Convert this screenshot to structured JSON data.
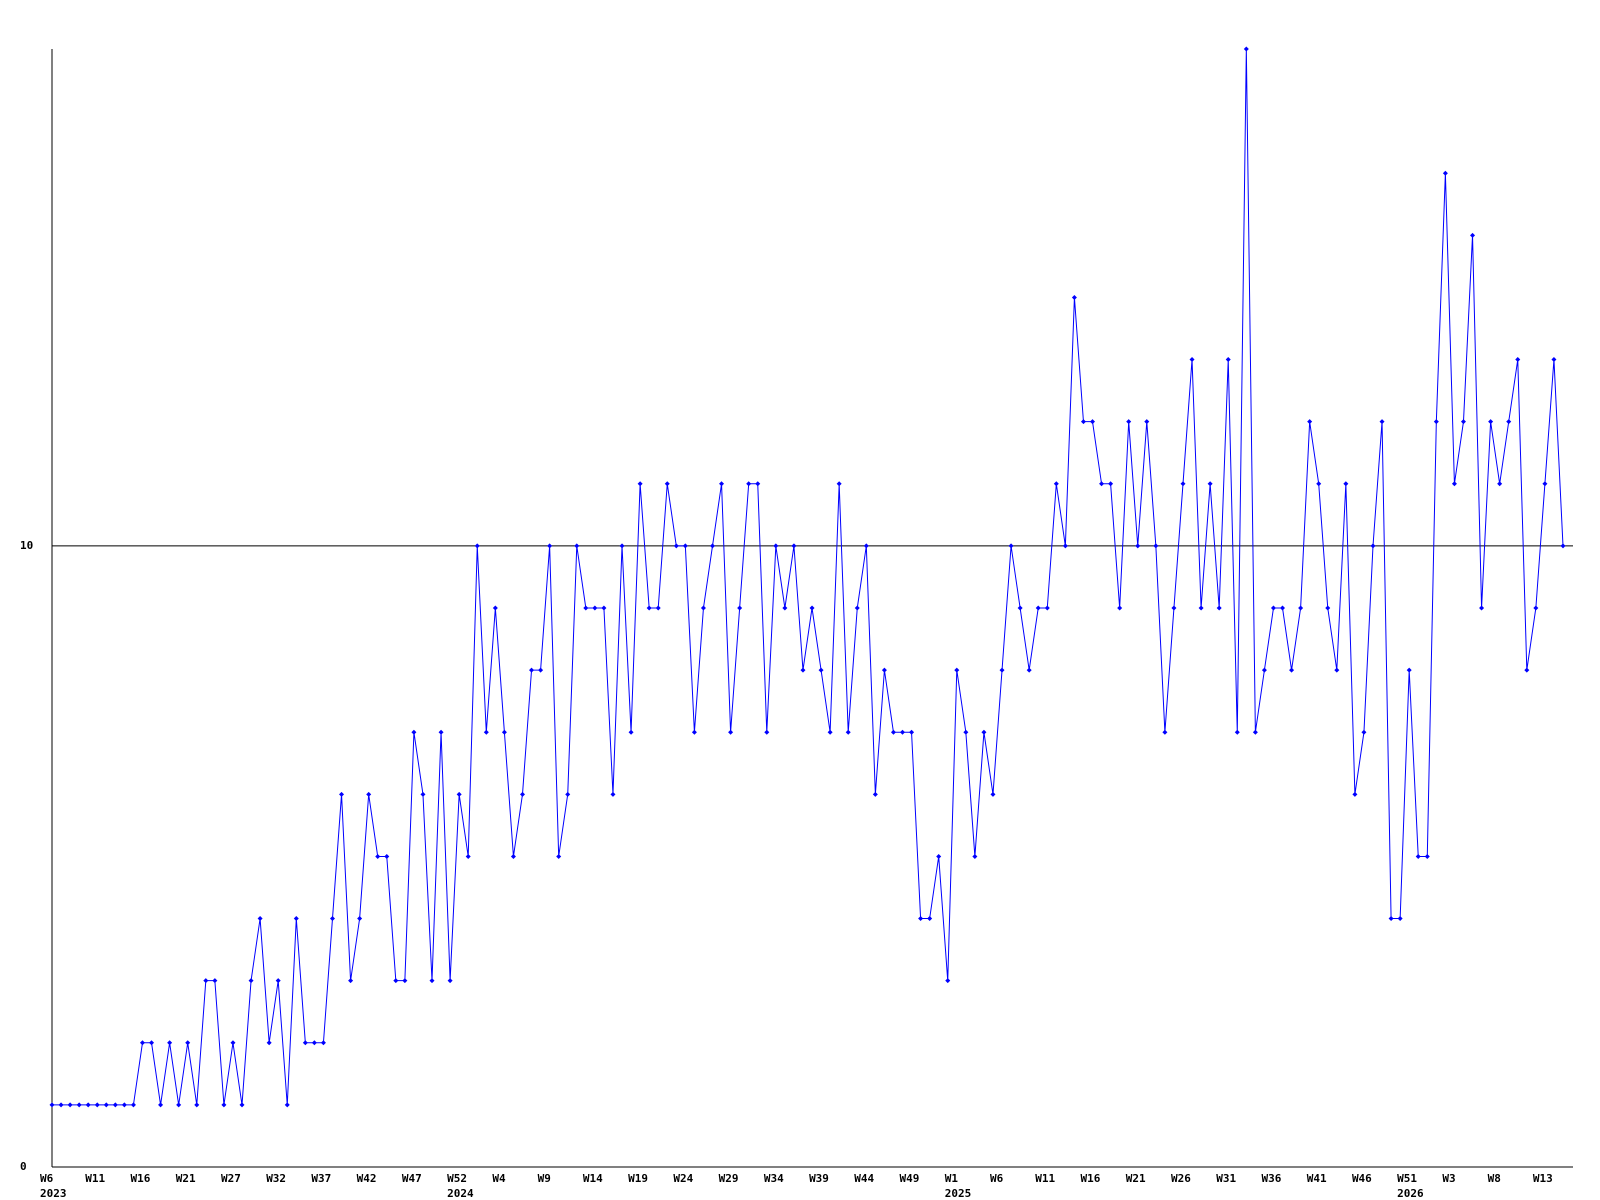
{
  "chart_data": {
    "type": "line",
    "categories": [
      "W6",
      null,
      null,
      null,
      null,
      "W11",
      null,
      null,
      null,
      null,
      "W16",
      null,
      null,
      null,
      null,
      "W21",
      null,
      null,
      null,
      null,
      "W27",
      null,
      null,
      null,
      null,
      "W32",
      null,
      null,
      null,
      null,
      "W37",
      null,
      null,
      null,
      null,
      "W42",
      null,
      null,
      null,
      null,
      "W47",
      null,
      null,
      null,
      null,
      "W52",
      null,
      null,
      null,
      null,
      "W4",
      null,
      null,
      null,
      null,
      "W9",
      null,
      null,
      null,
      null,
      "W14",
      null,
      null,
      null,
      null,
      "W19",
      null,
      null,
      null,
      null,
      "W24",
      null,
      null,
      null,
      null,
      "W29",
      null,
      null,
      null,
      null,
      "W34",
      null,
      null,
      null,
      null,
      "W39",
      null,
      null,
      null,
      null,
      "W44",
      null,
      null,
      null,
      null,
      "W49",
      null,
      null,
      null,
      null,
      "W1",
      null,
      null,
      null,
      null,
      "W6",
      null,
      null,
      null,
      null,
      "W11",
      null,
      null,
      null,
      null,
      "W16",
      null,
      null,
      null,
      null,
      "W21",
      null,
      null,
      null,
      null,
      "W26",
      null,
      null,
      null,
      null,
      "W31",
      null,
      null,
      null,
      null,
      "W36",
      null,
      null,
      null,
      null,
      "W41",
      null,
      null,
      null,
      null,
      "W46",
      null,
      null,
      null,
      null,
      "W51",
      null,
      null,
      null,
      null,
      "W3",
      null,
      null,
      null,
      null,
      "W8",
      null,
      null,
      null,
      null,
      "W13",
      null,
      null
    ],
    "category_years": [
      "2023",
      null,
      null,
      null,
      null,
      null,
      null,
      null,
      null,
      null,
      null,
      null,
      null,
      null,
      null,
      null,
      null,
      null,
      null,
      null,
      null,
      null,
      null,
      null,
      null,
      null,
      null,
      null,
      null,
      null,
      null,
      null,
      null,
      null,
      null,
      null,
      null,
      null,
      null,
      null,
      null,
      null,
      null,
      null,
      null,
      "2024",
      null,
      null,
      null,
      null,
      null,
      null,
      null,
      null,
      null,
      null,
      null,
      null,
      null,
      null,
      null,
      null,
      null,
      null,
      null,
      null,
      null,
      null,
      null,
      null,
      null,
      null,
      null,
      null,
      null,
      null,
      null,
      null,
      null,
      null,
      null,
      null,
      null,
      null,
      null,
      null,
      null,
      null,
      null,
      null,
      null,
      null,
      null,
      null,
      null,
      null,
      null,
      null,
      null,
      null,
      "2025",
      null,
      null,
      null,
      null,
      null,
      null,
      null,
      null,
      null,
      null,
      null,
      null,
      null,
      null,
      null,
      null,
      null,
      null,
      null,
      null,
      null,
      null,
      null,
      null,
      null,
      null,
      null,
      null,
      null,
      null,
      null,
      null,
      null,
      null,
      null,
      null,
      null,
      null,
      null,
      null,
      null,
      null,
      null,
      null,
      null,
      null,
      null,
      null,
      null,
      "2026",
      null,
      null,
      null,
      null,
      null,
      null,
      null,
      null,
      null,
      null,
      null,
      null,
      null,
      null,
      null,
      null,
      null
    ],
    "series": [
      {
        "color": "#0000ff",
        "values": [
          1,
          1,
          1,
          1,
          1,
          1,
          1,
          1,
          1,
          1,
          2,
          2,
          1,
          2,
          1,
          2,
          1,
          3,
          3,
          1,
          2,
          1,
          3,
          4,
          2,
          3,
          1,
          4,
          2,
          2,
          2,
          4,
          6,
          3,
          4,
          6,
          5,
          5,
          3,
          3,
          7,
          6,
          3,
          7,
          3,
          6,
          5,
          10,
          7,
          9,
          7,
          5,
          6,
          8,
          8,
          10,
          5,
          6,
          10,
          9,
          9,
          9,
          6,
          10,
          7,
          11,
          9,
          9,
          11,
          10,
          10,
          7,
          9,
          10,
          11,
          7,
          9,
          11,
          11,
          7,
          10,
          9,
          10,
          8,
          9,
          8,
          7,
          11,
          7,
          9,
          10,
          6,
          8,
          7,
          7,
          7,
          4,
          4,
          5,
          3,
          8,
          7,
          5,
          7,
          6,
          8,
          10,
          9,
          8,
          9,
          9,
          11,
          10,
          14,
          12,
          12,
          11,
          11,
          9,
          12,
          10,
          12,
          10,
          7,
          9,
          11,
          13,
          9,
          11,
          9,
          13,
          7,
          18,
          7,
          8,
          9,
          9,
          8,
          9,
          12,
          11,
          9,
          8,
          11,
          6,
          7,
          10,
          12,
          4,
          4,
          8,
          5,
          5,
          12,
          16,
          11,
          12,
          15,
          9,
          12,
          11,
          12,
          13,
          8,
          9,
          11,
          13,
          10
        ]
      }
    ],
    "ylim": [
      0,
      18
    ],
    "yticks": [
      0,
      10
    ],
    "grid": true
  }
}
